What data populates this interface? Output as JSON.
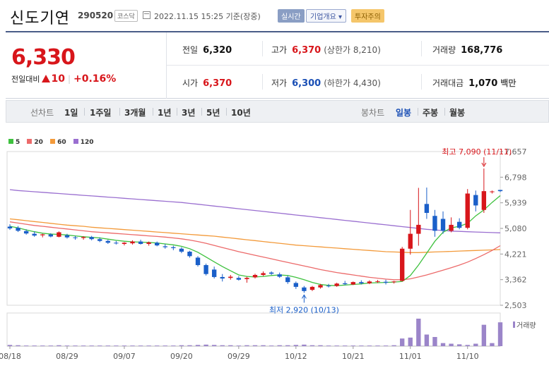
{
  "header": {
    "company_name": "신도기연",
    "stock_code": "290520",
    "market": "코스닥",
    "timestamp": "2022.11.15 15:25 기준(장중)",
    "realtime_label": "실시간",
    "overview_label": "기업개요 ▾",
    "warning_label": "투자주의"
  },
  "quote": {
    "current_price": "6,330",
    "change_label": "전일대비",
    "change_amount": "10",
    "change_rate": "+0.16%",
    "prev_close_label": "전일",
    "prev_close": "6,320",
    "high_label": "고가",
    "high": "6,370",
    "upper_limit": "(상한가 8,210)",
    "volume_label": "거래량",
    "volume": "168,776",
    "open_label": "시가",
    "open": "6,370",
    "low_label": "저가",
    "low": "6,300",
    "lower_limit": "(하한가 4,430)",
    "value_label": "거래대금",
    "value": "1,070",
    "value_unit": "백만"
  },
  "period_bar": {
    "line_chart_label": "선차트",
    "line_periods": [
      "1일",
      "1주일",
      "3개월",
      "1년",
      "3년",
      "5년",
      "10년"
    ],
    "candle_label": "봉차트",
    "candle_periods": [
      "일봉",
      "주봉",
      "월봉"
    ],
    "active_candle": "일봉"
  },
  "colors": {
    "up": "#d8161b",
    "down": "#1a5fc9",
    "ma5": "#3ec13e",
    "ma20": "#ec6a6a",
    "ma60": "#f39a3a",
    "ma120": "#9a6fd0",
    "volume": "#9b85c9"
  },
  "chart_data": {
    "type": "candlestick",
    "legend": [
      "5",
      "20",
      "60",
      "120"
    ],
    "y_ticks": [
      "7,657",
      "6,798",
      "5,939",
      "5,080",
      "4,221",
      "3,362",
      "2,503"
    ],
    "ylim": [
      2503,
      7657
    ],
    "x_tick_labels": [
      "08/18",
      "08/29",
      "09/07",
      "09/20",
      "09/29",
      "10/12",
      "10/21",
      "11/01",
      "11/10"
    ],
    "x_tick_index": [
      0,
      7,
      14,
      21,
      28,
      35,
      42,
      49,
      56
    ],
    "candles": [
      {
        "o": 5140,
        "h": 5220,
        "l": 5030,
        "c": 5080
      },
      {
        "o": 5100,
        "h": 5160,
        "l": 4960,
        "c": 5000
      },
      {
        "o": 4990,
        "h": 5050,
        "l": 4870,
        "c": 4910
      },
      {
        "o": 4900,
        "h": 4980,
        "l": 4800,
        "c": 4840
      },
      {
        "o": 4850,
        "h": 4900,
        "l": 4780,
        "c": 4880
      },
      {
        "o": 4880,
        "h": 4920,
        "l": 4780,
        "c": 4810
      },
      {
        "o": 4800,
        "h": 4980,
        "l": 4780,
        "c": 4950
      },
      {
        "o": 4850,
        "h": 4900,
        "l": 4740,
        "c": 4780
      },
      {
        "o": 4780,
        "h": 4830,
        "l": 4700,
        "c": 4760
      },
      {
        "o": 4760,
        "h": 4820,
        "l": 4700,
        "c": 4790
      },
      {
        "o": 4790,
        "h": 4830,
        "l": 4680,
        "c": 4720
      },
      {
        "o": 4720,
        "h": 4780,
        "l": 4620,
        "c": 4660
      },
      {
        "o": 4660,
        "h": 4700,
        "l": 4560,
        "c": 4600
      },
      {
        "o": 4600,
        "h": 4660,
        "l": 4540,
        "c": 4580
      },
      {
        "o": 4560,
        "h": 4620,
        "l": 4510,
        "c": 4600
      },
      {
        "o": 4580,
        "h": 4680,
        "l": 4540,
        "c": 4640
      },
      {
        "o": 4640,
        "h": 4700,
        "l": 4540,
        "c": 4560
      },
      {
        "o": 4560,
        "h": 4640,
        "l": 4500,
        "c": 4610
      },
      {
        "o": 4600,
        "h": 4640,
        "l": 4480,
        "c": 4510
      },
      {
        "o": 4480,
        "h": 4560,
        "l": 4400,
        "c": 4450
      },
      {
        "o": 4450,
        "h": 4500,
        "l": 4350,
        "c": 4420
      },
      {
        "o": 4400,
        "h": 4450,
        "l": 4250,
        "c": 4300
      },
      {
        "o": 4300,
        "h": 4330,
        "l": 4100,
        "c": 4150
      },
      {
        "o": 4100,
        "h": 4150,
        "l": 3800,
        "c": 3850
      },
      {
        "o": 3850,
        "h": 3900,
        "l": 3500,
        "c": 3550
      },
      {
        "o": 3700,
        "h": 3800,
        "l": 3400,
        "c": 3450
      },
      {
        "o": 3450,
        "h": 3550,
        "l": 3300,
        "c": 3400
      },
      {
        "o": 3420,
        "h": 3520,
        "l": 3360,
        "c": 3460
      },
      {
        "o": 3420,
        "h": 3480,
        "l": 3330,
        "c": 3360
      },
      {
        "o": 3380,
        "h": 3460,
        "l": 3260,
        "c": 3420
      },
      {
        "o": 3440,
        "h": 3560,
        "l": 3400,
        "c": 3520
      },
      {
        "o": 3520,
        "h": 3640,
        "l": 3480,
        "c": 3580
      },
      {
        "o": 3600,
        "h": 3640,
        "l": 3520,
        "c": 3560
      },
      {
        "o": 3540,
        "h": 3600,
        "l": 3420,
        "c": 3460
      },
      {
        "o": 3440,
        "h": 3500,
        "l": 3220,
        "c": 3280
      },
      {
        "o": 3250,
        "h": 3300,
        "l": 3050,
        "c": 3120
      },
      {
        "o": 3100,
        "h": 3150,
        "l": 2920,
        "c": 2980
      },
      {
        "o": 3020,
        "h": 3150,
        "l": 2980,
        "c": 3120
      },
      {
        "o": 3100,
        "h": 3220,
        "l": 3060,
        "c": 3180
      },
      {
        "o": 3160,
        "h": 3220,
        "l": 3100,
        "c": 3150
      },
      {
        "o": 3150,
        "h": 3260,
        "l": 3120,
        "c": 3230
      },
      {
        "o": 3240,
        "h": 3320,
        "l": 3180,
        "c": 3210
      },
      {
        "o": 3200,
        "h": 3300,
        "l": 3180,
        "c": 3280
      },
      {
        "o": 3280,
        "h": 3340,
        "l": 3200,
        "c": 3240
      },
      {
        "o": 3240,
        "h": 3340,
        "l": 3210,
        "c": 3300
      },
      {
        "o": 3300,
        "h": 3350,
        "l": 3250,
        "c": 3310
      },
      {
        "o": 3290,
        "h": 3360,
        "l": 3200,
        "c": 3260
      },
      {
        "o": 3280,
        "h": 3320,
        "l": 3230,
        "c": 3300
      },
      {
        "o": 3320,
        "h": 4460,
        "l": 3300,
        "c": 4400
      },
      {
        "o": 4400,
        "h": 5700,
        "l": 4200,
        "c": 4900
      },
      {
        "o": 4900,
        "h": 6440,
        "l": 4500,
        "c": 5200
      },
      {
        "o": 5900,
        "h": 6450,
        "l": 5400,
        "c": 5600
      },
      {
        "o": 5500,
        "h": 5700,
        "l": 4800,
        "c": 5000
      },
      {
        "o": 5400,
        "h": 5650,
        "l": 4900,
        "c": 5000
      },
      {
        "o": 5000,
        "h": 5450,
        "l": 4950,
        "c": 5200
      },
      {
        "o": 5300,
        "h": 5420,
        "l": 5050,
        "c": 5100
      },
      {
        "o": 5100,
        "h": 6400,
        "l": 5050,
        "c": 6250
      },
      {
        "o": 6200,
        "h": 6350,
        "l": 5650,
        "c": 5850
      },
      {
        "o": 5700,
        "h": 7090,
        "l": 5600,
        "c": 6330
      },
      {
        "o": 6300,
        "h": 6350,
        "l": 6250,
        "c": 6320
      },
      {
        "o": 6370,
        "h": 6370,
        "l": 6300,
        "c": 6330
      }
    ],
    "volumes": [
      4,
      3,
      2,
      2,
      2,
      2,
      3,
      2,
      2,
      2,
      2,
      2,
      2,
      2,
      2,
      2,
      2,
      2,
      2,
      2,
      2,
      3,
      3,
      4,
      5,
      4,
      3,
      3,
      2,
      3,
      3,
      3,
      2,
      3,
      3,
      4,
      5,
      3,
      3,
      2,
      2,
      2,
      2,
      2,
      2,
      2,
      2,
      3,
      25,
      28,
      90,
      38,
      30,
      10,
      8,
      6,
      4,
      8,
      70,
      10,
      78
    ],
    "volume_label": "거래량",
    "ma": {
      "ma5": [
        5150,
        5100,
        5030,
        4970,
        4920,
        4890,
        4880,
        4860,
        4830,
        4800,
        4780,
        4760,
        4720,
        4680,
        4650,
        4630,
        4620,
        4610,
        4590,
        4560,
        4530,
        4480,
        4400,
        4280,
        4120,
        3960,
        3800,
        3660,
        3520,
        3470,
        3450,
        3470,
        3500,
        3520,
        3500,
        3440,
        3360,
        3270,
        3200,
        3170,
        3160,
        3180,
        3200,
        3220,
        3250,
        3260,
        3270,
        3280,
        3300,
        3500,
        3850,
        4250,
        4650,
        4950,
        5100,
        5150,
        5250,
        5500,
        5700,
        5950,
        6180
      ],
      "ma20": [
        5300,
        5260,
        5220,
        5180,
        5150,
        5120,
        5090,
        5060,
        5030,
        5000,
        4970,
        4950,
        4930,
        4910,
        4890,
        4870,
        4850,
        4830,
        4810,
        4790,
        4760,
        4730,
        4690,
        4640,
        4580,
        4510,
        4440,
        4370,
        4300,
        4240,
        4180,
        4120,
        4060,
        4000,
        3940,
        3880,
        3820,
        3760,
        3700,
        3650,
        3600,
        3560,
        3520,
        3480,
        3440,
        3410,
        3380,
        3360,
        3360,
        3390,
        3450,
        3520,
        3600,
        3680,
        3760,
        3850,
        3950,
        4070,
        4200,
        4340,
        4500
      ],
      "ma60": [
        5400,
        5370,
        5340,
        5310,
        5280,
        5250,
        5220,
        5190,
        5170,
        5150,
        5120,
        5100,
        5080,
        5060,
        5040,
        5020,
        5000,
        4980,
        4960,
        4940,
        4920,
        4900,
        4880,
        4860,
        4840,
        4820,
        4790,
        4760,
        4730,
        4700,
        4670,
        4640,
        4610,
        4580,
        4550,
        4520,
        4500,
        4480,
        4460,
        4440,
        4420,
        4400,
        4380,
        4360,
        4340,
        4320,
        4300,
        4290,
        4280,
        4270,
        4270,
        4280,
        4290,
        4300,
        4310,
        4320,
        4330,
        4340,
        4350,
        4360,
        4370
      ],
      "ma120": [
        6380,
        6350,
        6330,
        6310,
        6290,
        6270,
        6250,
        6230,
        6210,
        6190,
        6170,
        6150,
        6130,
        6110,
        6090,
        6070,
        6050,
        6030,
        6010,
        5990,
        5970,
        5950,
        5920,
        5890,
        5860,
        5830,
        5800,
        5770,
        5740,
        5710,
        5680,
        5650,
        5620,
        5590,
        5560,
        5530,
        5500,
        5470,
        5440,
        5410,
        5380,
        5350,
        5320,
        5290,
        5260,
        5230,
        5200,
        5170,
        5140,
        5110,
        5080,
        5050,
        5030,
        5010,
        4990,
        4980,
        4970,
        4960,
        4950,
        4940,
        4930
      ]
    },
    "annotations": {
      "high_text": "최고 7,090 (11/11)",
      "low_text": "최저 2,920 (10/13)",
      "high_index": 58,
      "high_value": 7090,
      "low_index": 36,
      "low_value": 2920
    }
  }
}
